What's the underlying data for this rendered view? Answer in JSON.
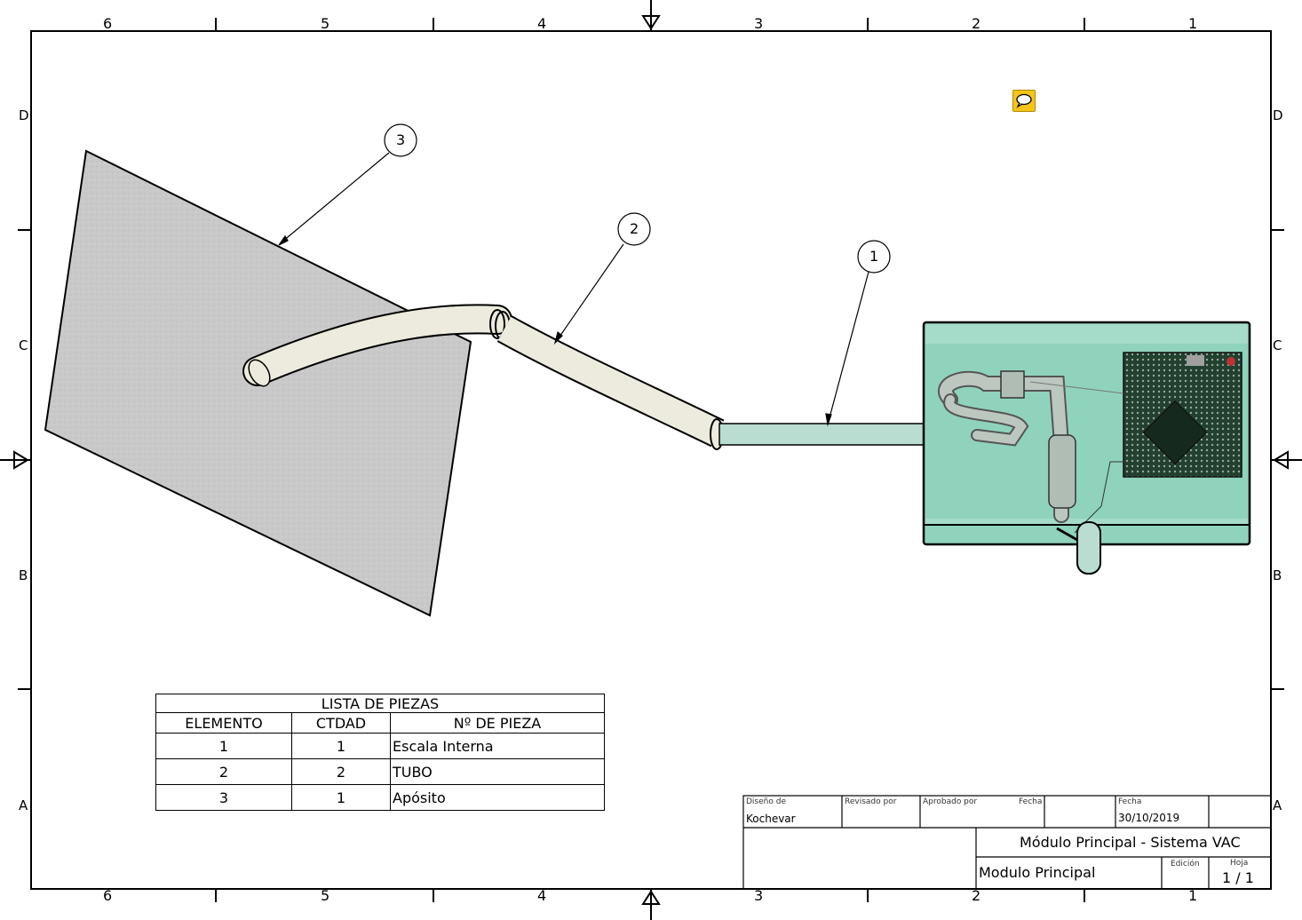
{
  "frame": {
    "column_numbers_top": [
      "6",
      "5",
      "4",
      "3",
      "2",
      "1"
    ],
    "column_numbers_bottom": [
      "6",
      "5",
      "4",
      "3",
      "2",
      "1"
    ],
    "row_letters_left": [
      "D",
      "C",
      "B",
      "A"
    ],
    "row_letters_right": [
      "D",
      "C",
      "B",
      "A"
    ]
  },
  "balloons": [
    "1",
    "2",
    "3"
  ],
  "comment_icon": "speech-bubble-icon",
  "parts_list": {
    "title": "LISTA DE PIEZAS",
    "headers": [
      "ELEMENTO",
      "CTDAD",
      "Nº DE PIEZA"
    ],
    "rows": [
      [
        "1",
        "1",
        "Escala Interna"
      ],
      [
        "2",
        "2",
        "TUBO"
      ],
      [
        "3",
        "1",
        "Apósito"
      ]
    ]
  },
  "title_block": {
    "designed_by_label": "Diseño de",
    "designed_by": "Kochevar",
    "reviewed_by_label": "Revisado por",
    "approved_by_label": "Aprobado por",
    "date_label_1": "Fecha",
    "date_label_2": "Fecha",
    "date": "30/10/2019",
    "title": "Módulo Principal - Sistema VAC",
    "subtitle": "Modulo Principal",
    "edition_label": "Edición",
    "sheet_label": "Hoja",
    "sheet": "1 / 1"
  },
  "colors": {
    "dressing": "#c8c8c8",
    "tube": "#ecebdd",
    "module": "#8fd3bd",
    "pcb": "#1f3a2c"
  }
}
